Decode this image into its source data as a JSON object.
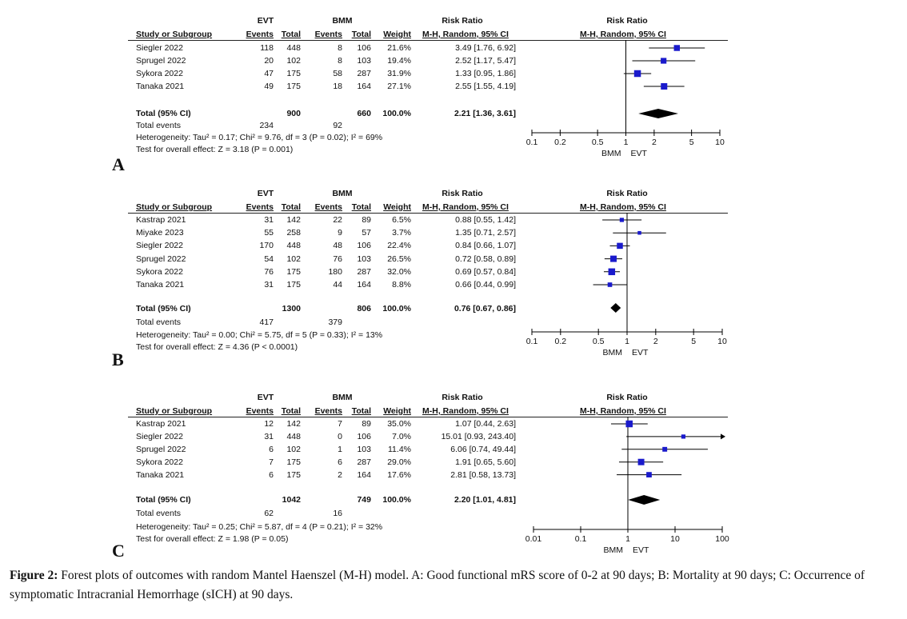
{
  "panels": [
    {
      "letter": "A",
      "group1": "EVT",
      "group2": "BMM",
      "rr_header": "Risk Ratio",
      "method_label": "M-H, Random, 95% CI",
      "col_headers": [
        "Study or Subgroup",
        "Events",
        "Total",
        "Events",
        "Total",
        "Weight",
        "M-H, Random, 95% CI"
      ],
      "rows": [
        {
          "study": "Siegler 2022",
          "e1": "118",
          "t1": "448",
          "e2": "8",
          "t2": "106",
          "weight": "21.6%",
          "ci": "3.49 [1.76, 6.92]"
        },
        {
          "study": "Sprugel 2022",
          "e1": "20",
          "t1": "102",
          "e2": "8",
          "t2": "103",
          "weight": "19.4%",
          "ci": "2.52 [1.17, 5.47]"
        },
        {
          "study": "Sykora 2022",
          "e1": "47",
          "t1": "175",
          "e2": "58",
          "t2": "287",
          "weight": "31.9%",
          "ci": "1.33 [0.95, 1.86]"
        },
        {
          "study": "Tanaka 2021",
          "e1": "49",
          "t1": "175",
          "e2": "18",
          "t2": "164",
          "weight": "27.1%",
          "ci": "2.55 [1.55, 4.19]"
        }
      ],
      "total_label": "Total (95% CI)",
      "total_n1": "900",
      "total_n2": "660",
      "total_weight": "100.0%",
      "total_ci": "2.21 [1.36, 3.61]",
      "events_label": "Total events",
      "events1": "234",
      "events2": "92",
      "heterogeneity": "Heterogeneity: Tau² = 0.17; Chi² = 9.76, df = 3 (P = 0.02); I² = 69%",
      "overall": "Test for overall effect: Z = 3.18 (P = 0.001)",
      "axis_left": "BMM",
      "axis_right": "EVT"
    },
    {
      "letter": "B",
      "group1": "EVT",
      "group2": "BMM",
      "rr_header": "Risk Ratio",
      "method_label": "M-H, Random, 95% CI",
      "col_headers": [
        "Study or Subgroup",
        "Events",
        "Total",
        "Events",
        "Total",
        "Weight",
        "M-H, Random, 95% CI"
      ],
      "rows": [
        {
          "study": "Kastrap 2021",
          "e1": "31",
          "t1": "142",
          "e2": "22",
          "t2": "89",
          "weight": "6.5%",
          "ci": "0.88 [0.55, 1.42]"
        },
        {
          "study": "Miyake 2023",
          "e1": "55",
          "t1": "258",
          "e2": "9",
          "t2": "57",
          "weight": "3.7%",
          "ci": "1.35 [0.71, 2.57]"
        },
        {
          "study": "Siegler 2022",
          "e1": "170",
          "t1": "448",
          "e2": "48",
          "t2": "106",
          "weight": "22.4%",
          "ci": "0.84 [0.66, 1.07]"
        },
        {
          "study": "Sprugel 2022",
          "e1": "54",
          "t1": "102",
          "e2": "76",
          "t2": "103",
          "weight": "26.5%",
          "ci": "0.72 [0.58, 0.89]"
        },
        {
          "study": "Sykora 2022",
          "e1": "76",
          "t1": "175",
          "e2": "180",
          "t2": "287",
          "weight": "32.0%",
          "ci": "0.69 [0.57, 0.84]"
        },
        {
          "study": "Tanaka 2021",
          "e1": "31",
          "t1": "175",
          "e2": "44",
          "t2": "164",
          "weight": "8.8%",
          "ci": "0.66 [0.44, 0.99]"
        }
      ],
      "total_label": "Total (95% CI)",
      "total_n1": "1300",
      "total_n2": "806",
      "total_weight": "100.0%",
      "total_ci": "0.76 [0.67, 0.86]",
      "events_label": "Total events",
      "events1": "417",
      "events2": "379",
      "heterogeneity": "Heterogeneity: Tau² = 0.00; Chi² = 5.75, df = 5 (P = 0.33); I² = 13%",
      "overall": "Test for overall effect: Z = 4.36 (P < 0.0001)",
      "axis_left": "BMM",
      "axis_right": "EVT"
    },
    {
      "letter": "C",
      "group1": "EVT",
      "group2": "BMM",
      "rr_header": "Risk Ratio",
      "method_label": "M-H, Random, 95% CI",
      "col_headers": [
        "Study or Subgroup",
        "Events",
        "Total",
        "Events",
        "Total",
        "Weight",
        "M-H, Random, 95% CI"
      ],
      "rows": [
        {
          "study": "Kastrap 2021",
          "e1": "12",
          "t1": "142",
          "e2": "7",
          "t2": "89",
          "weight": "35.0%",
          "ci": "1.07 [0.44, 2.63]"
        },
        {
          "study": "Siegler 2022",
          "e1": "31",
          "t1": "448",
          "e2": "0",
          "t2": "106",
          "weight": "7.0%",
          "ci": "15.01 [0.93, 243.40]"
        },
        {
          "study": "Sprugel 2022",
          "e1": "6",
          "t1": "102",
          "e2": "1",
          "t2": "103",
          "weight": "11.4%",
          "ci": "6.06 [0.74, 49.44]"
        },
        {
          "study": "Sykora 2022",
          "e1": "7",
          "t1": "175",
          "e2": "6",
          "t2": "287",
          "weight": "29.0%",
          "ci": "1.91 [0.65, 5.60]"
        },
        {
          "study": "Tanaka 2021",
          "e1": "6",
          "t1": "175",
          "e2": "2",
          "t2": "164",
          "weight": "17.6%",
          "ci": "2.81 [0.58, 13.73]"
        }
      ],
      "total_label": "Total (95% CI)",
      "total_n1": "1042",
      "total_n2": "749",
      "total_weight": "100.0%",
      "total_ci": "2.20 [1.01, 4.81]",
      "events_label": "Total events",
      "events1": "62",
      "events2": "16",
      "heterogeneity": "Heterogeneity: Tau² = 0.25; Chi² = 5.87, df = 4 (P = 0.21); I² = 32%",
      "overall": "Test for overall effect: Z = 1.98 (P = 0.05)",
      "axis_left": "BMM",
      "axis_right": "EVT"
    }
  ],
  "caption": {
    "label": "Figure 2:",
    "text": " Forest plots of outcomes with random Mantel Haenszel (M-H) model. A: Good functional mRS score of 0-2 at 90 days; B: Mortality at 90 days; C: Occurrence of symptomatic Intracranial Hemorrhage (sICH) at 90 days."
  },
  "colors": {
    "marker": "#1a1acc",
    "diamond": "#000000",
    "line": "#000000"
  },
  "chart_data": [
    {
      "type": "forest",
      "scale": "log",
      "xlim": [
        0.1,
        10
      ],
      "xticks": [
        "0.1",
        "0.2",
        "0.5",
        "1",
        "2",
        "5",
        "10"
      ],
      "reference_line": 1,
      "studies": [
        "Siegler 2022",
        "Sprugel 2022",
        "Sykora 2022",
        "Tanaka 2021"
      ],
      "rr": [
        3.49,
        2.52,
        1.33,
        2.55
      ],
      "lower": [
        1.76,
        1.17,
        0.95,
        1.55
      ],
      "upper": [
        6.92,
        5.47,
        1.86,
        4.19
      ],
      "weight": [
        21.6,
        19.4,
        31.9,
        27.1
      ],
      "pooled": {
        "rr": 2.21,
        "lower": 1.36,
        "upper": 3.61
      }
    },
    {
      "type": "forest",
      "scale": "log",
      "xlim": [
        0.1,
        10
      ],
      "xticks": [
        "0.1",
        "0.2",
        "0.5",
        "1",
        "2",
        "5",
        "10"
      ],
      "reference_line": 1,
      "studies": [
        "Kastrap 2021",
        "Miyake 2023",
        "Siegler 2022",
        "Sprugel 2022",
        "Sykora 2022",
        "Tanaka 2021"
      ],
      "rr": [
        0.88,
        1.35,
        0.84,
        0.72,
        0.69,
        0.66
      ],
      "lower": [
        0.55,
        0.71,
        0.66,
        0.58,
        0.57,
        0.44
      ],
      "upper": [
        1.42,
        2.57,
        1.07,
        0.89,
        0.84,
        0.99
      ],
      "weight": [
        6.5,
        3.7,
        22.4,
        26.5,
        32.0,
        8.8
      ],
      "pooled": {
        "rr": 0.76,
        "lower": 0.67,
        "upper": 0.86
      }
    },
    {
      "type": "forest",
      "scale": "log",
      "xlim": [
        0.01,
        100
      ],
      "xticks": [
        "0.01",
        "0.1",
        "1",
        "10",
        "100"
      ],
      "reference_line": 1,
      "studies": [
        "Kastrap 2021",
        "Siegler 2022",
        "Sprugel 2022",
        "Sykora 2022",
        "Tanaka 2021"
      ],
      "rr": [
        1.07,
        15.01,
        6.06,
        1.91,
        2.81
      ],
      "lower": [
        0.44,
        0.93,
        0.74,
        0.65,
        0.58
      ],
      "upper": [
        2.63,
        243.4,
        49.44,
        5.6,
        13.73
      ],
      "weight": [
        35.0,
        7.0,
        11.4,
        29.0,
        17.6
      ],
      "pooled": {
        "rr": 2.2,
        "lower": 1.01,
        "upper": 4.81
      }
    }
  ]
}
